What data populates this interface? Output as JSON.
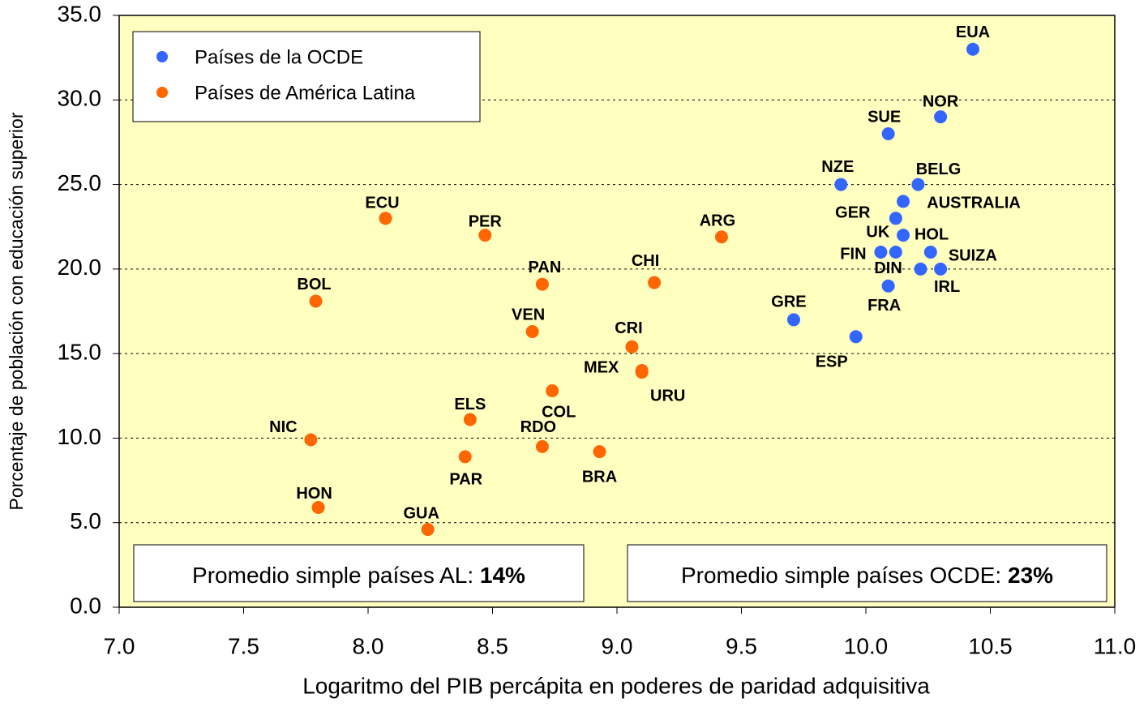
{
  "chart_data": {
    "type": "scatter",
    "x_label": "Logaritmo del PIB percápita en poderes de paridad adquisitiva",
    "y_label": "Porcentaje de población con educación superior",
    "xlim": [
      7.0,
      11.0
    ],
    "xticks": [
      {
        "value": 7.0,
        "label": "7.0"
      },
      7.5,
      {
        "value": 8.0,
        "label": "8.0"
      },
      8.5,
      {
        "value": 9.0,
        "label": "9.0"
      },
      9.5,
      {
        "value": 10.0,
        "label": "10.0"
      },
      10.5,
      {
        "value": 11.0,
        "label": "11.0"
      }
    ],
    "ylim": [
      0,
      35
    ],
    "yticks": [
      {
        "value": 0,
        "label": "0.0"
      },
      {
        "value": 5,
        "label": "5.0"
      },
      {
        "value": 10,
        "label": "10.0"
      },
      {
        "value": 15,
        "label": "15.0"
      },
      {
        "value": 20,
        "label": "20.0"
      },
      {
        "value": 25,
        "label": "25.0"
      },
      {
        "value": 30,
        "label": "30.0"
      },
      {
        "value": 35,
        "label": "35.0"
      }
    ],
    "grid": true,
    "legend": "top-left",
    "series": [
      {
        "name": "Países de la OCDE",
        "color": "#3366ff",
        "labels": [
          "EUA",
          "NOR",
          "SUE",
          "NZE",
          "BELG",
          "AUSTRALIA",
          "GER",
          "UK",
          "HOL",
          "FIN",
          "SUIZA",
          "DIN",
          "IRL",
          "FRA",
          "GRE",
          "ESP"
        ],
        "x": [
          10.43,
          10.3,
          10.09,
          9.9,
          10.21,
          10.15,
          10.12,
          10.12,
          10.15,
          10.06,
          10.26,
          10.22,
          10.3,
          10.09,
          9.71,
          9.96
        ],
        "values": [
          33.0,
          29.0,
          28.0,
          25.0,
          25.0,
          24.0,
          23.0,
          21.0,
          22.0,
          21.0,
          21.0,
          20.0,
          20.0,
          19.0,
          17.0,
          16.0
        ]
      },
      {
        "name": "Países de América Latina",
        "color": "#ff6600",
        "labels": [
          "ECU",
          "PER",
          "ARG",
          "PAN",
          "CHI",
          "BOL",
          "VEN",
          "CRI",
          "MEX",
          "URU",
          "COL",
          "ELS",
          "NIC",
          "RDO",
          "BRA",
          "PAR",
          "HON",
          "GUA"
        ],
        "x": [
          8.07,
          8.47,
          9.42,
          8.7,
          9.15,
          7.79,
          8.66,
          9.06,
          9.1,
          9.1,
          8.74,
          8.41,
          7.77,
          8.7,
          8.93,
          8.39,
          7.8,
          8.24
        ],
        "values": [
          23.0,
          22.0,
          21.9,
          19.1,
          19.2,
          18.1,
          16.3,
          15.4,
          14.0,
          13.9,
          12.8,
          11.1,
          9.9,
          9.5,
          9.2,
          8.9,
          5.9,
          4.6
        ]
      }
    ],
    "annotations": [
      {
        "text": "Promedio simple países AL:",
        "value": "14%"
      },
      {
        "text": "Promedio simple países OCDE:",
        "value": "23%"
      }
    ]
  }
}
